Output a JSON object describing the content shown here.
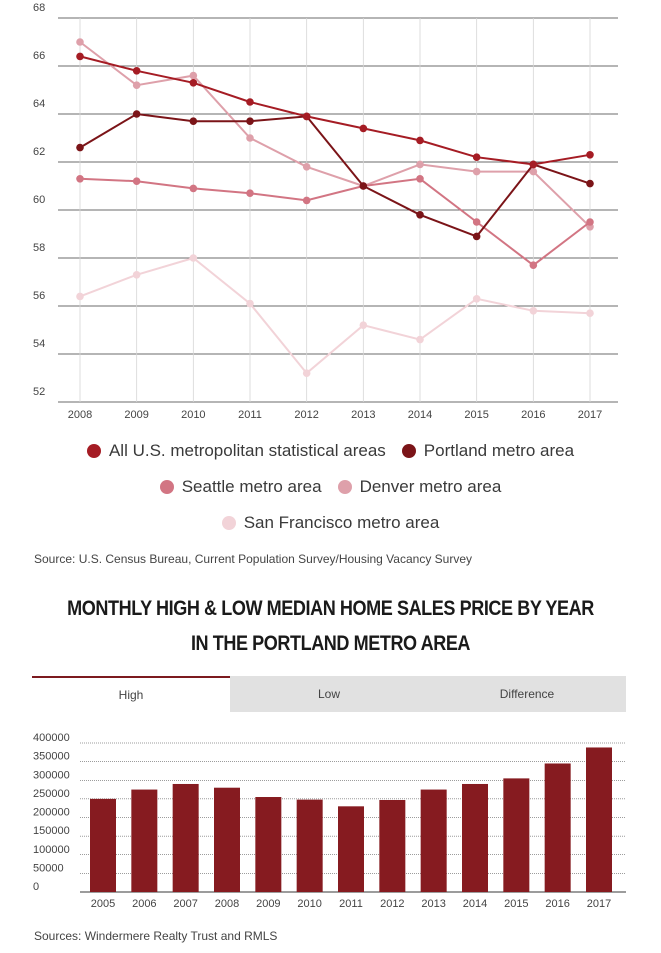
{
  "line_chart": {
    "chart_data": {
      "type": "line",
      "x": [
        "2008",
        "2009",
        "2010",
        "2011",
        "2012",
        "2013",
        "2014",
        "2015",
        "2016",
        "2017"
      ],
      "y_ticks": [
        "52",
        "54",
        "56",
        "58",
        "60",
        "62",
        "64",
        "66",
        "68"
      ],
      "ylim": [
        52,
        68
      ],
      "grid": true,
      "legend_placement": "bottom",
      "series": [
        {
          "name": "All U.S. metropolitan statistical areas",
          "color": "#a51c24",
          "values": [
            66.4,
            65.8,
            65.3,
            64.5,
            63.9,
            63.4,
            62.9,
            62.2,
            61.9,
            62.3
          ]
        },
        {
          "name": "Portland metro area",
          "color": "#7b1418",
          "values": [
            62.6,
            64.0,
            63.7,
            63.7,
            63.9,
            61.0,
            59.8,
            58.9,
            61.9,
            61.1
          ]
        },
        {
          "name": "Seattle metro area",
          "color": "#d27583",
          "values": [
            61.3,
            61.2,
            60.9,
            60.7,
            60.4,
            61.0,
            61.3,
            59.5,
            57.7,
            59.5
          ]
        },
        {
          "name": "Denver metro area",
          "color": "#dea0aa",
          "values": [
            67.0,
            65.2,
            65.6,
            63.0,
            61.8,
            61.0,
            61.9,
            61.6,
            61.6,
            59.3
          ]
        },
        {
          "name": "San Francisco metro area",
          "color": "#f2d3d8",
          "values": [
            56.4,
            57.3,
            58.0,
            56.1,
            53.2,
            55.2,
            54.6,
            56.3,
            55.8,
            55.7
          ]
        }
      ]
    },
    "source": "Source: U.S. Census Bureau, Current Population Survey/Housing Vacancy Survey"
  },
  "bar_section": {
    "title_line1": "MONTHLY HIGH & LOW MEDIAN HOME SALES PRICE  BY YEAR",
    "title_line2": "IN THE PORTLAND METRO AREA",
    "tabs": [
      "High",
      "Low",
      "Difference"
    ],
    "active_tab": "High",
    "chart_data": {
      "type": "bar",
      "categories": [
        "2005",
        "2006",
        "2007",
        "2008",
        "2009",
        "2010",
        "2011",
        "2012",
        "2013",
        "2014",
        "2015",
        "2016",
        "2017"
      ],
      "values": [
        250000,
        275000,
        290000,
        280000,
        255000,
        248000,
        230000,
        247000,
        275000,
        290000,
        305000,
        345000,
        388000
      ],
      "y_ticks": [
        "0",
        "50000",
        "100000",
        "150000",
        "200000",
        "250000",
        "300000",
        "350000",
        "400000"
      ],
      "ylim": [
        0,
        400000
      ],
      "color": "#861b20",
      "grid": true
    },
    "source": "Sources: Windermere Realty Trust and RMLS"
  }
}
